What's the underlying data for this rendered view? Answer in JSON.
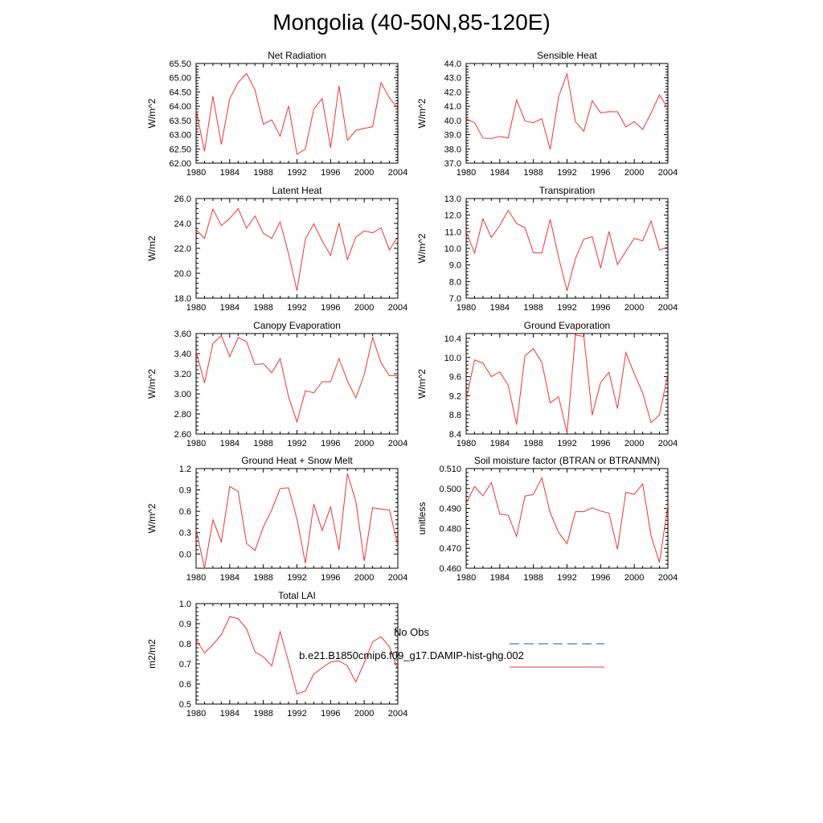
{
  "figure": {
    "title": "Mongolia (40-50N,85-120E)"
  },
  "legend": {
    "items": [
      {
        "label": "No Obs",
        "color": "#3344cc",
        "dash": true
      },
      {
        "label": "b.e21.B1850cmip6.f09_g17.DAMIP-hist-ghg.002",
        "color": "#ee3333",
        "dash": false
      }
    ]
  },
  "chart_data": [
    {
      "type": "line",
      "title": "Net Radiation",
      "ylabel": "W/m^2",
      "xlim": [
        1980,
        2004
      ],
      "ylim": [
        62.0,
        65.5
      ],
      "xticks": [
        1980,
        1984,
        1988,
        1992,
        1996,
        2000,
        2004
      ],
      "yticks": [
        62.0,
        62.5,
        63.0,
        63.5,
        64.0,
        64.5,
        65.0,
        65.5
      ],
      "ytick_labels": [
        "62.00",
        "62.50",
        "63.00",
        "63.50",
        "64.00",
        "64.50",
        "65.00",
        "65.50"
      ],
      "color": "#ee3333",
      "x": [
        1980,
        1981,
        1982,
        1983,
        1984,
        1985,
        1986,
        1987,
        1988,
        1989,
        1990,
        1991,
        1992,
        1993,
        1994,
        1995,
        1996,
        1997,
        1998,
        1999,
        2000,
        2001,
        2002,
        2003,
        2004
      ],
      "y": [
        63.85,
        62.42,
        64.35,
        62.66,
        64.26,
        64.83,
        65.15,
        64.57,
        63.37,
        63.52,
        62.95,
        64.01,
        62.31,
        62.5,
        63.9,
        64.27,
        62.54,
        64.71,
        62.8,
        63.15,
        63.22,
        63.28,
        64.83,
        64.29,
        63.93
      ]
    },
    {
      "type": "line",
      "title": "Sensible Heat",
      "ylabel": "W/m^2",
      "xlim": [
        1980,
        2004
      ],
      "ylim": [
        37.0,
        44.0
      ],
      "xticks": [
        1980,
        1984,
        1988,
        1992,
        1996,
        2000,
        2004
      ],
      "yticks": [
        37.0,
        38.0,
        39.0,
        40.0,
        41.0,
        42.0,
        43.0,
        44.0
      ],
      "ytick_labels": [
        "37.0",
        "38.0",
        "39.0",
        "40.0",
        "41.0",
        "42.0",
        "43.0",
        "44.0"
      ],
      "color": "#ee3333",
      "x": [
        1980,
        1981,
        1982,
        1983,
        1984,
        1985,
        1986,
        1987,
        1988,
        1989,
        1990,
        1991,
        1992,
        1993,
        1994,
        1995,
        1996,
        1997,
        1998,
        1999,
        2000,
        2001,
        2002,
        2003,
        2004
      ],
      "y": [
        40.11,
        39.85,
        38.76,
        38.73,
        38.88,
        38.77,
        41.44,
        39.96,
        39.84,
        40.13,
        37.95,
        41.66,
        43.27,
        39.92,
        39.24,
        41.38,
        40.53,
        40.62,
        40.61,
        39.54,
        39.92,
        39.37,
        40.52,
        41.79,
        40.87
      ]
    },
    {
      "type": "line",
      "title": "Latent Heat",
      "ylabel": "W/m2",
      "xlim": [
        1980,
        2004
      ],
      "ylim": [
        18.0,
        26.0
      ],
      "xticks": [
        1980,
        1984,
        1988,
        1992,
        1996,
        2000,
        2004
      ],
      "yticks": [
        18.0,
        20.0,
        22.0,
        24.0,
        26.0
      ],
      "ytick_labels": [
        "18.0",
        "20.0",
        "22.0",
        "24.0",
        "26.0"
      ],
      "color": "#ee3333",
      "x": [
        1980,
        1981,
        1982,
        1983,
        1984,
        1985,
        1986,
        1987,
        1988,
        1989,
        1990,
        1991,
        1992,
        1993,
        1994,
        1995,
        1996,
        1997,
        1998,
        1999,
        2000,
        2001,
        2002,
        2003,
        2004
      ],
      "y": [
        23.5,
        22.8,
        25.15,
        23.83,
        24.4,
        25.2,
        23.62,
        24.6,
        23.2,
        22.8,
        24.12,
        21.56,
        18.6,
        22.75,
        23.97,
        22.6,
        21.43,
        24.03,
        21.1,
        22.9,
        23.4,
        23.25,
        23.65,
        21.88,
        22.92
      ]
    },
    {
      "type": "line",
      "title": "Transpiration",
      "ylabel": "W/m^2",
      "xlim": [
        1980,
        2004
      ],
      "ylim": [
        7.0,
        13.0
      ],
      "xticks": [
        1980,
        1984,
        1988,
        1992,
        1996,
        2000,
        2004
      ],
      "yticks": [
        7.0,
        8.0,
        9.0,
        10.0,
        11.0,
        12.0,
        13.0
      ],
      "ytick_labels": [
        "7.0",
        "8.0",
        "9.0",
        "10.0",
        "11.0",
        "12.0",
        "13.0"
      ],
      "color": "#ee3333",
      "x": [
        1980,
        1981,
        1982,
        1983,
        1984,
        1985,
        1986,
        1987,
        1988,
        1989,
        1990,
        1991,
        1992,
        1993,
        1994,
        1995,
        1996,
        1997,
        1998,
        1999,
        2000,
        2001,
        2002,
        2003,
        2004
      ],
      "y": [
        11.0,
        9.72,
        11.78,
        10.65,
        11.38,
        12.28,
        11.5,
        11.24,
        9.74,
        9.71,
        11.74,
        9.46,
        7.45,
        9.38,
        10.56,
        10.7,
        8.81,
        11.02,
        9.02,
        9.82,
        10.6,
        10.45,
        11.64,
        9.9,
        10.09
      ]
    },
    {
      "type": "line",
      "title": "Canopy Evaporation",
      "ylabel": "W/m^2",
      "xlim": [
        1980,
        2004
      ],
      "ylim": [
        2.6,
        3.6
      ],
      "xticks": [
        1980,
        1984,
        1988,
        1992,
        1996,
        2000,
        2004
      ],
      "yticks": [
        2.6,
        2.8,
        3.0,
        3.2,
        3.4,
        3.6
      ],
      "ytick_labels": [
        "2.60",
        "2.80",
        "3.00",
        "3.20",
        "3.40",
        "3.60"
      ],
      "color": "#ee3333",
      "x": [
        1980,
        1981,
        1982,
        1983,
        1984,
        1985,
        1986,
        1987,
        1988,
        1989,
        1990,
        1991,
        1992,
        1993,
        1994,
        1995,
        1996,
        1997,
        1998,
        1999,
        2000,
        2001,
        2002,
        2003,
        2004
      ],
      "y": [
        3.42,
        3.11,
        3.5,
        3.58,
        3.37,
        3.56,
        3.52,
        3.29,
        3.3,
        3.21,
        3.35,
        2.97,
        2.72,
        3.03,
        3.01,
        3.12,
        3.12,
        3.35,
        3.13,
        2.96,
        3.19,
        3.56,
        3.31,
        3.18,
        3.18
      ]
    },
    {
      "type": "line",
      "title": "Ground Evaporation",
      "ylabel": "W/m^2",
      "xlim": [
        1980,
        2004
      ],
      "ylim": [
        8.4,
        10.5
      ],
      "xticks": [
        1980,
        1984,
        1988,
        1992,
        1996,
        2000,
        2004
      ],
      "yticks": [
        8.4,
        8.8,
        9.2,
        9.6,
        10.0,
        10.4
      ],
      "ytick_labels": [
        "8.4",
        "8.8",
        "9.2",
        "9.6",
        "10.0",
        "10.4"
      ],
      "color": "#ee3333",
      "x": [
        1980,
        1981,
        1982,
        1983,
        1984,
        1985,
        1986,
        1987,
        1988,
        1989,
        1990,
        1991,
        1992,
        1993,
        1994,
        1995,
        1996,
        1997,
        1998,
        1999,
        2000,
        2001,
        2002,
        2003,
        2004
      ],
      "y": [
        9.12,
        9.95,
        9.88,
        9.6,
        9.7,
        9.42,
        8.6,
        10.04,
        10.18,
        9.9,
        9.05,
        9.18,
        8.42,
        10.47,
        10.44,
        8.8,
        9.48,
        9.69,
        8.93,
        10.1,
        9.66,
        9.26,
        8.64,
        8.8,
        9.66
      ]
    },
    {
      "type": "line",
      "title": "Ground Heat + Snow Melt",
      "ylabel": "W/m^2",
      "xlim": [
        1980,
        2004
      ],
      "ylim": [
        -0.2,
        1.2
      ],
      "xticks": [
        1980,
        1984,
        1988,
        1992,
        1996,
        2000,
        2004
      ],
      "yticks": [
        0.0,
        0.3,
        0.6,
        0.9,
        1.2
      ],
      "ytick_labels": [
        "0.0",
        "0.3",
        "0.6",
        "0.9",
        "1.2"
      ],
      "color": "#ee3333",
      "x": [
        1980,
        1981,
        1982,
        1983,
        1984,
        1985,
        1986,
        1987,
        1988,
        1989,
        1990,
        1991,
        1992,
        1993,
        1994,
        1995,
        1996,
        1997,
        1998,
        1999,
        2000,
        2001,
        2002,
        2003,
        2004
      ],
      "y": [
        0.34,
        -0.2,
        0.48,
        0.17,
        0.95,
        0.88,
        0.15,
        0.05,
        0.38,
        0.62,
        0.92,
        0.93,
        0.49,
        -0.13,
        0.7,
        0.33,
        0.66,
        0.06,
        1.13,
        0.74,
        -0.1,
        0.65,
        0.63,
        0.62,
        0.12
      ]
    },
    {
      "type": "line",
      "title": "Soil moisture factor (BTRAN or BTRANMN)",
      "ylabel": "unitless",
      "xlim": [
        1980,
        2004
      ],
      "ylim": [
        0.46,
        0.51
      ],
      "xticks": [
        1980,
        1984,
        1988,
        1992,
        1996,
        2000,
        2004
      ],
      "yticks": [
        0.46,
        0.47,
        0.48,
        0.49,
        0.5,
        0.51
      ],
      "ytick_labels": [
        "0.460",
        "0.470",
        "0.480",
        "0.490",
        "0.500",
        "0.510"
      ],
      "color": "#ee3333",
      "x": [
        1980,
        1981,
        1982,
        1983,
        1984,
        1985,
        1986,
        1987,
        1988,
        1989,
        1990,
        1991,
        1992,
        1993,
        1994,
        1995,
        1996,
        1997,
        1998,
        1999,
        2000,
        2001,
        2002,
        2003,
        2004
      ],
      "y": [
        0.4925,
        0.501,
        0.4963,
        0.503,
        0.4872,
        0.4866,
        0.476,
        0.4962,
        0.497,
        0.5054,
        0.4878,
        0.4779,
        0.4723,
        0.4884,
        0.4884,
        0.4903,
        0.4887,
        0.4876,
        0.4695,
        0.4981,
        0.497,
        0.5023,
        0.4763,
        0.4629,
        0.4916
      ]
    },
    {
      "type": "line",
      "title": "Total LAI",
      "ylabel": "m2/m2",
      "xlim": [
        1980,
        2004
      ],
      "ylim": [
        0.5,
        1.0
      ],
      "xticks": [
        1980,
        1984,
        1988,
        1992,
        1996,
        2000,
        2004
      ],
      "yticks": [
        0.5,
        0.6,
        0.7,
        0.8,
        0.9,
        1.0
      ],
      "ytick_labels": [
        "0.5",
        "0.6",
        "0.7",
        "0.8",
        "0.9",
        "1.0"
      ],
      "color": "#ee3333",
      "x": [
        1980,
        1981,
        1982,
        1983,
        1984,
        1985,
        1986,
        1987,
        1988,
        1989,
        1990,
        1991,
        1992,
        1993,
        1994,
        1995,
        1996,
        1997,
        1998,
        1999,
        2000,
        2001,
        2002,
        2003,
        2004
      ],
      "y": [
        0.82,
        0.755,
        0.795,
        0.845,
        0.935,
        0.925,
        0.875,
        0.76,
        0.735,
        0.69,
        0.86,
        0.71,
        0.55,
        0.565,
        0.65,
        0.68,
        0.71,
        0.715,
        0.69,
        0.61,
        0.705,
        0.81,
        0.835,
        0.785,
        0.67
      ]
    }
  ]
}
